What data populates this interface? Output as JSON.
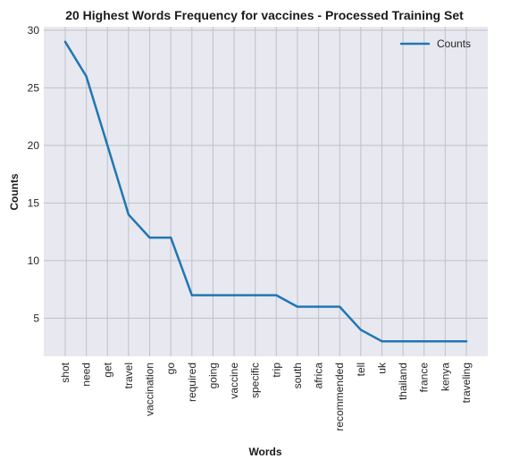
{
  "chart_data": {
    "type": "line",
    "title": "20 Highest Words Frequency for vaccines - Processed Training Set",
    "xlabel": "Words",
    "ylabel": "Counts",
    "categories": [
      "shot",
      "need",
      "get",
      "travel",
      "vaccination",
      "go",
      "required",
      "going",
      "vaccine",
      "specific",
      "trip",
      "south",
      "africa",
      "recommended",
      "tell",
      "uk",
      "thailand",
      "france",
      "kenya",
      "traveling"
    ],
    "series": [
      {
        "name": "Counts",
        "values": [
          29,
          26,
          20,
          14,
          12,
          12,
          7,
          7,
          7,
          7,
          7,
          6,
          6,
          6,
          4,
          3,
          3,
          3,
          3,
          3
        ]
      }
    ],
    "ylim": [
      1.7,
      30.3
    ],
    "yticks": [
      5,
      10,
      15,
      20,
      25,
      30
    ],
    "grid": true,
    "legend": "top-right",
    "colors": {
      "line": "#1f77b4",
      "plot_bg": "#e8e8f0",
      "grid": "#c0c0c6"
    }
  }
}
